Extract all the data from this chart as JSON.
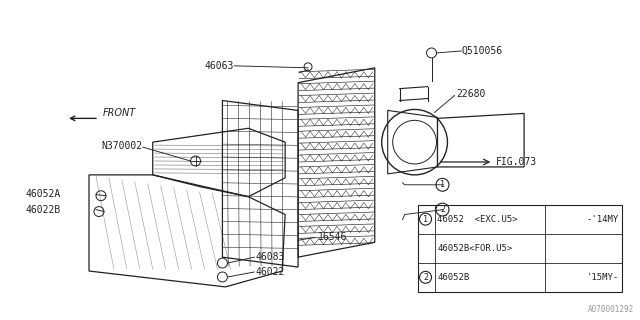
{
  "bg_color": "#ffffff",
  "line_color": "#222222",
  "text_color": "#222222",
  "front_text": "FRONT",
  "watermark": "A070001292",
  "table_rows": [
    {
      "circle": "1",
      "part": "46052  <EXC.U5>",
      "note": "-'14MY"
    },
    {
      "circle": "",
      "part": "46052B<FOR.U5>",
      "note": ""
    },
    {
      "circle": "2",
      "part": "46052B",
      "note": "'15MY-"
    }
  ]
}
